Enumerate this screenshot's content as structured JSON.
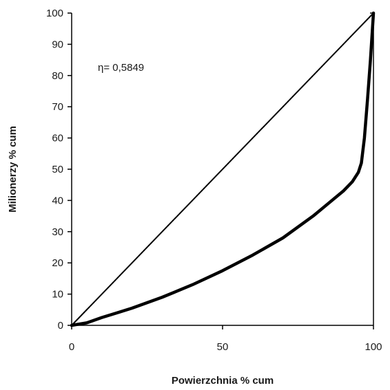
{
  "chart_data": {
    "type": "line",
    "title": "",
    "xlabel": "Powierzchnia % cum",
    "ylabel": "Milionerzy % cum",
    "xlim": [
      0,
      100
    ],
    "ylim": [
      0,
      100
    ],
    "x_ticks": [
      0,
      50,
      100
    ],
    "y_ticks": [
      0,
      10,
      20,
      30,
      40,
      50,
      60,
      70,
      80,
      90,
      100
    ],
    "grid": false,
    "legend": "none",
    "annotation": "η= 0,5849",
    "series": [
      {
        "x": [
          0,
          100
        ],
        "y": [
          0,
          100
        ],
        "color": "#000000"
      },
      {
        "x": [
          0,
          5,
          10,
          15,
          20,
          30,
          40,
          50,
          60,
          70,
          80,
          85,
          90,
          93,
          95,
          96,
          97,
          98,
          99,
          100
        ],
        "y": [
          0,
          0.8,
          2.5,
          4,
          5.5,
          9,
          13,
          17.5,
          22.5,
          28,
          35,
          39,
          43,
          46,
          49,
          52,
          60,
          72,
          85,
          100
        ],
        "color": "#000000"
      }
    ]
  }
}
